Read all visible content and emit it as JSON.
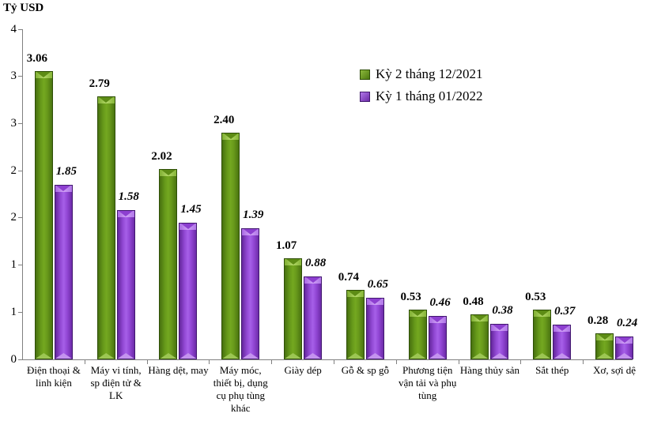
{
  "chart_data": {
    "type": "bar",
    "title": "",
    "ylabel": "Tỷ USD",
    "xlabel": "",
    "ylim": [
      0,
      3.5
    ],
    "y_tick_values": [
      3.5,
      3,
      2.5,
      2,
      1.5,
      1,
      0.5,
      0
    ],
    "y_tick_labels": [
      "4",
      "3",
      "3",
      "2",
      "2",
      "1",
      "1",
      "0"
    ],
    "grid": false,
    "legend_position": "inside-top-right",
    "value_label_format": "0.00",
    "categories": [
      "Điện thoại & linh kiện",
      "Máy vi tính, sp điện tử & LK",
      "Hàng dệt, may",
      "Máy móc, thiết bị, dụng cụ phụ tùng khác",
      "Giày dép",
      "Gỗ & sp gỗ",
      "Phương tiện vận tải và phụ tùng",
      "Hàng thủy sản",
      "Sắt thép",
      "Xơ, sợi dệ"
    ],
    "series": [
      {
        "name": "Kỳ 2 tháng 12/2021",
        "color": "#679b1c",
        "values": [
          3.06,
          2.79,
          2.02,
          2.4,
          1.07,
          0.74,
          0.53,
          0.48,
          0.53,
          0.28
        ]
      },
      {
        "name": "Kỳ 1 tháng 01/2022",
        "color": "#9440d8",
        "values": [
          1.85,
          1.58,
          1.45,
          1.39,
          0.88,
          0.65,
          0.46,
          0.38,
          0.37,
          0.24
        ]
      }
    ]
  }
}
